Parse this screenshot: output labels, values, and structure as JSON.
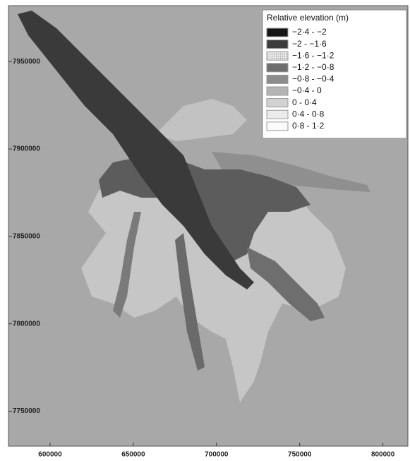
{
  "map": {
    "xlim": [
      575000,
      815000
    ],
    "ylim": [
      7730000,
      7982000
    ],
    "xticks": [
      600000,
      650000,
      700000,
      750000,
      800000
    ],
    "yticks": [
      7950000,
      7900000,
      7850000,
      7800000,
      7750000
    ],
    "legend": {
      "title": "Relative elevation (m)",
      "items": [
        {
          "label": "−2·4 - −2",
          "color": "#151515"
        },
        {
          "label": "−2 - −1·6",
          "color": "#3c3c3c"
        },
        {
          "label": "−1·6 - −1·2",
          "color": "#dcdcdc"
        },
        {
          "label": "−1·2 - −0·8",
          "color": "#6e6e6e"
        },
        {
          "label": "−0·8 - −0·4",
          "color": "#8c8c8c"
        },
        {
          "label": "−0·4 - 0",
          "color": "#b4b4b4"
        },
        {
          "label": "0 - 0·4",
          "color": "#d2d2d2"
        },
        {
          "label": "0·4 - 0·8",
          "color": "#ebebeb"
        },
        {
          "label": "0·8 - 1·2",
          "color": "#fafafa"
        }
      ]
    }
  }
}
